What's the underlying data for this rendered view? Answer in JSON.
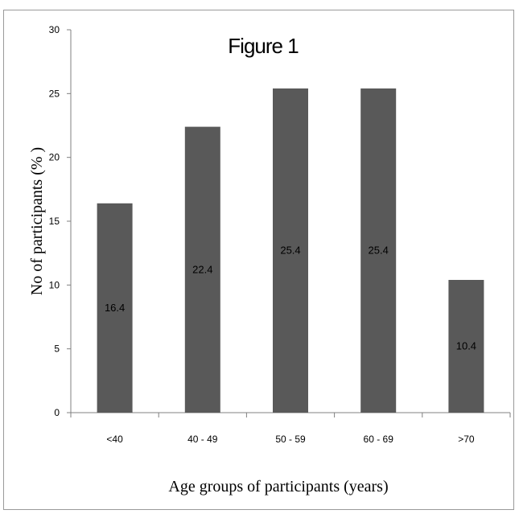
{
  "chart_data": {
    "type": "bar",
    "title": "Figure 1",
    "xlabel": "Age groups of participants (years)",
    "ylabel": "No of participants (% )",
    "categories": [
      "<40",
      "40 - 49",
      "50 - 59",
      "60 - 69",
      ">70"
    ],
    "values": [
      16.4,
      22.4,
      25.4,
      25.4,
      10.4
    ],
    "data_labels": [
      "16.4",
      "22.4",
      "25.4",
      "25.4",
      "10.4"
    ],
    "ylim": [
      0,
      30
    ],
    "yticks": [
      0,
      5,
      10,
      15,
      20,
      25,
      30
    ],
    "grid": false,
    "legend": "none",
    "bar_color": "#595959"
  }
}
